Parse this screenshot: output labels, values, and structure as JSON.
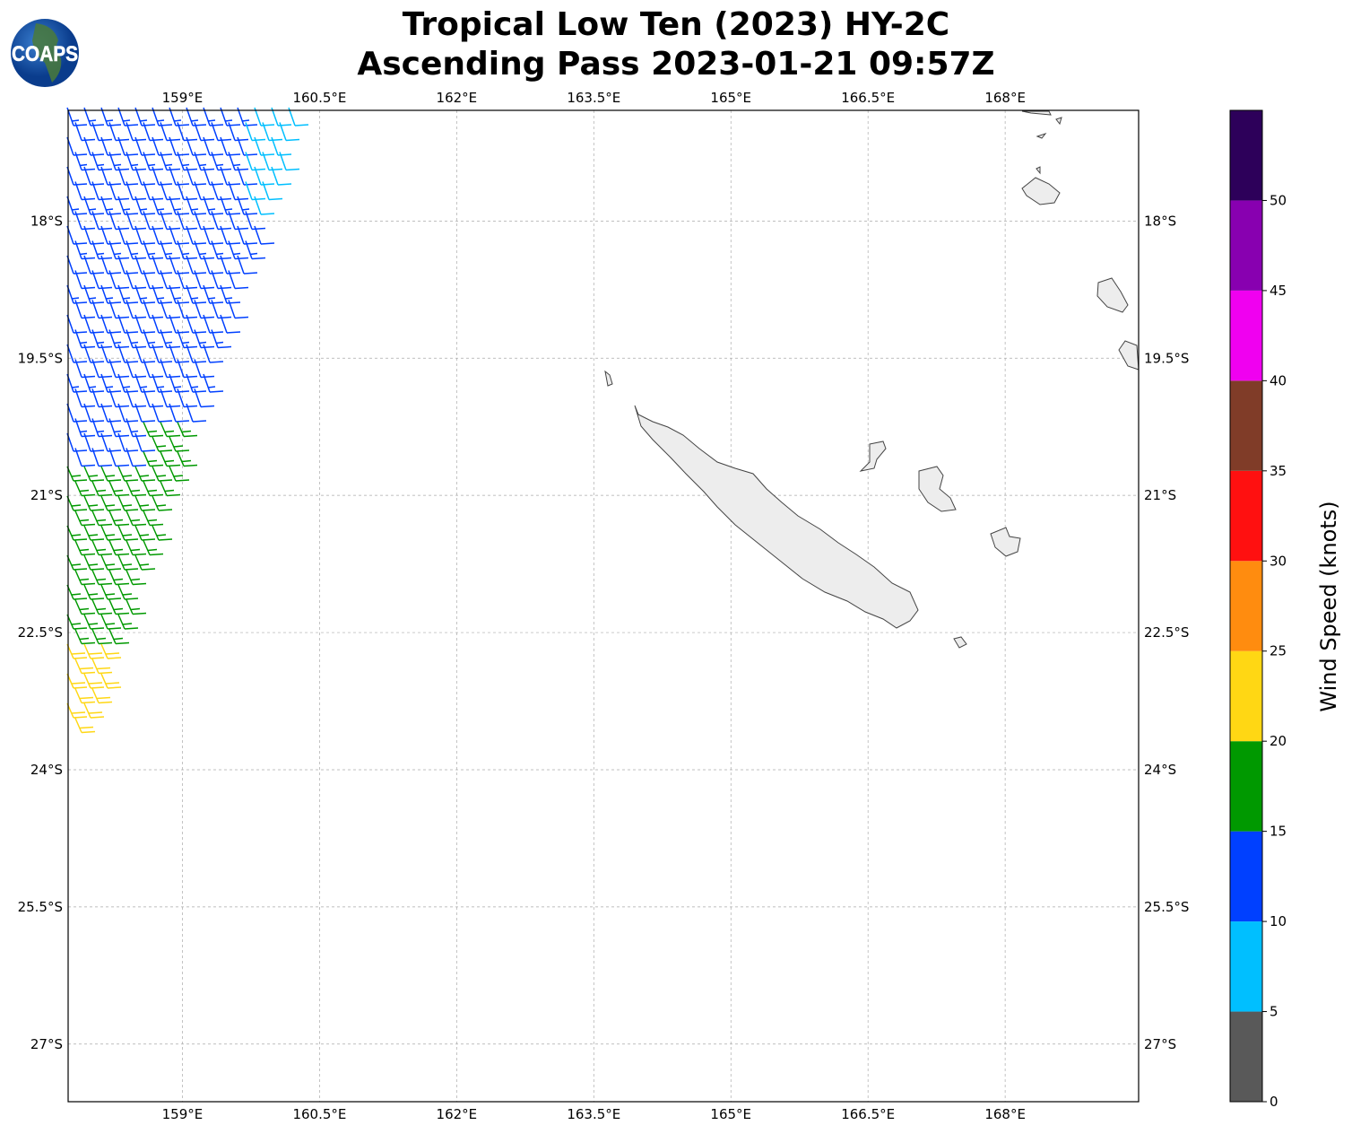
{
  "title": {
    "line1": "Tropical Low Ten (2023) HY-2C",
    "line2": "Ascending Pass 2023-01-21 09:57Z"
  },
  "logo": {
    "text": "COAPS"
  },
  "chart_data": {
    "type": "map",
    "lon_range": [
      157.75,
      169.46
    ],
    "lat_range": [
      -27.63,
      -16.79
    ],
    "lon_ticks": [
      159,
      160.5,
      162,
      163.5,
      165,
      166.5,
      168
    ],
    "lon_tick_labels": [
      "159°E",
      "160.5°E",
      "162°E",
      "163.5°E",
      "165°E",
      "166.5°E",
      "168°E"
    ],
    "lat_ticks": [
      -18,
      -19.5,
      -21,
      -22.5,
      -24,
      -25.5,
      -27
    ],
    "lat_tick_labels": [
      "18°S",
      "19.5°S",
      "21°S",
      "22.5°S",
      "24°S",
      "25.5°S",
      "27°S"
    ],
    "grid": true,
    "wind_barbs": {
      "description_bands": [
        {
          "lat_from": -16.8,
          "lat_to": -18.1,
          "lon_min_for_cyan": 160.3,
          "speed_kt": 8
        },
        {
          "lat_from": -16.8,
          "lat_to": -20.3,
          "speed_kt": 12
        },
        {
          "lat_from": -20.3,
          "lat_to": -22.6,
          "speed_kt": 17
        },
        {
          "lat_from": -22.6,
          "lat_to": -23.6,
          "speed_kt": 22
        }
      ]
    },
    "colorbar": {
      "label": "Wind Speed (knots)",
      "bounds": [
        0,
        5,
        10,
        15,
        20,
        25,
        30,
        35,
        40,
        45,
        50,
        55
      ],
      "tick_labels": [
        "0",
        "5",
        "10",
        "15",
        "20",
        "25",
        "30",
        "35",
        "40",
        "45",
        "50"
      ],
      "colors": [
        "#595959",
        "#00bfff",
        "#0040ff",
        "#009900",
        "#ffd714",
        "#ff8c0f",
        "#ff1010",
        "#803c28",
        "#f000f0",
        "#8800b0",
        "#2d005a"
      ]
    }
  }
}
